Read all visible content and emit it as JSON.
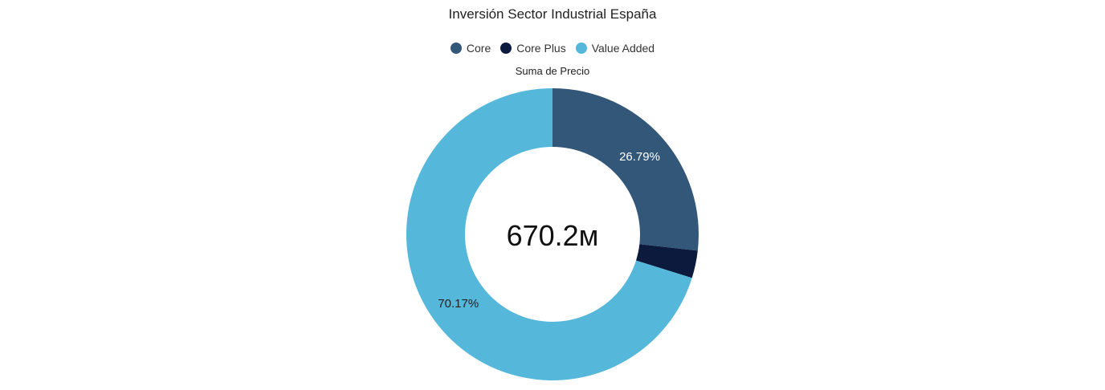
{
  "chart_data": {
    "type": "pie",
    "style": "donut",
    "title": "Inversión Sector Industrial España",
    "subtitle": "Suma de Precio",
    "center_label": "670.2м",
    "legend_position": "top",
    "categories": [
      "Core",
      "Core Plus",
      "Value Added"
    ],
    "values": [
      26.79,
      3.04,
      70.17
    ],
    "value_labels": [
      "26.79%",
      "",
      "70.17%"
    ],
    "colors": [
      "#335778",
      "#0c1a3d",
      "#55b7da"
    ],
    "label_colors": [
      "#ffffff",
      "#ffffff",
      "#222222"
    ]
  },
  "legend": {
    "items": [
      {
        "label": "Core",
        "color": "#335778"
      },
      {
        "label": "Core Plus",
        "color": "#0c1a3d"
      },
      {
        "label": "Value Added",
        "color": "#55b7da"
      }
    ]
  }
}
